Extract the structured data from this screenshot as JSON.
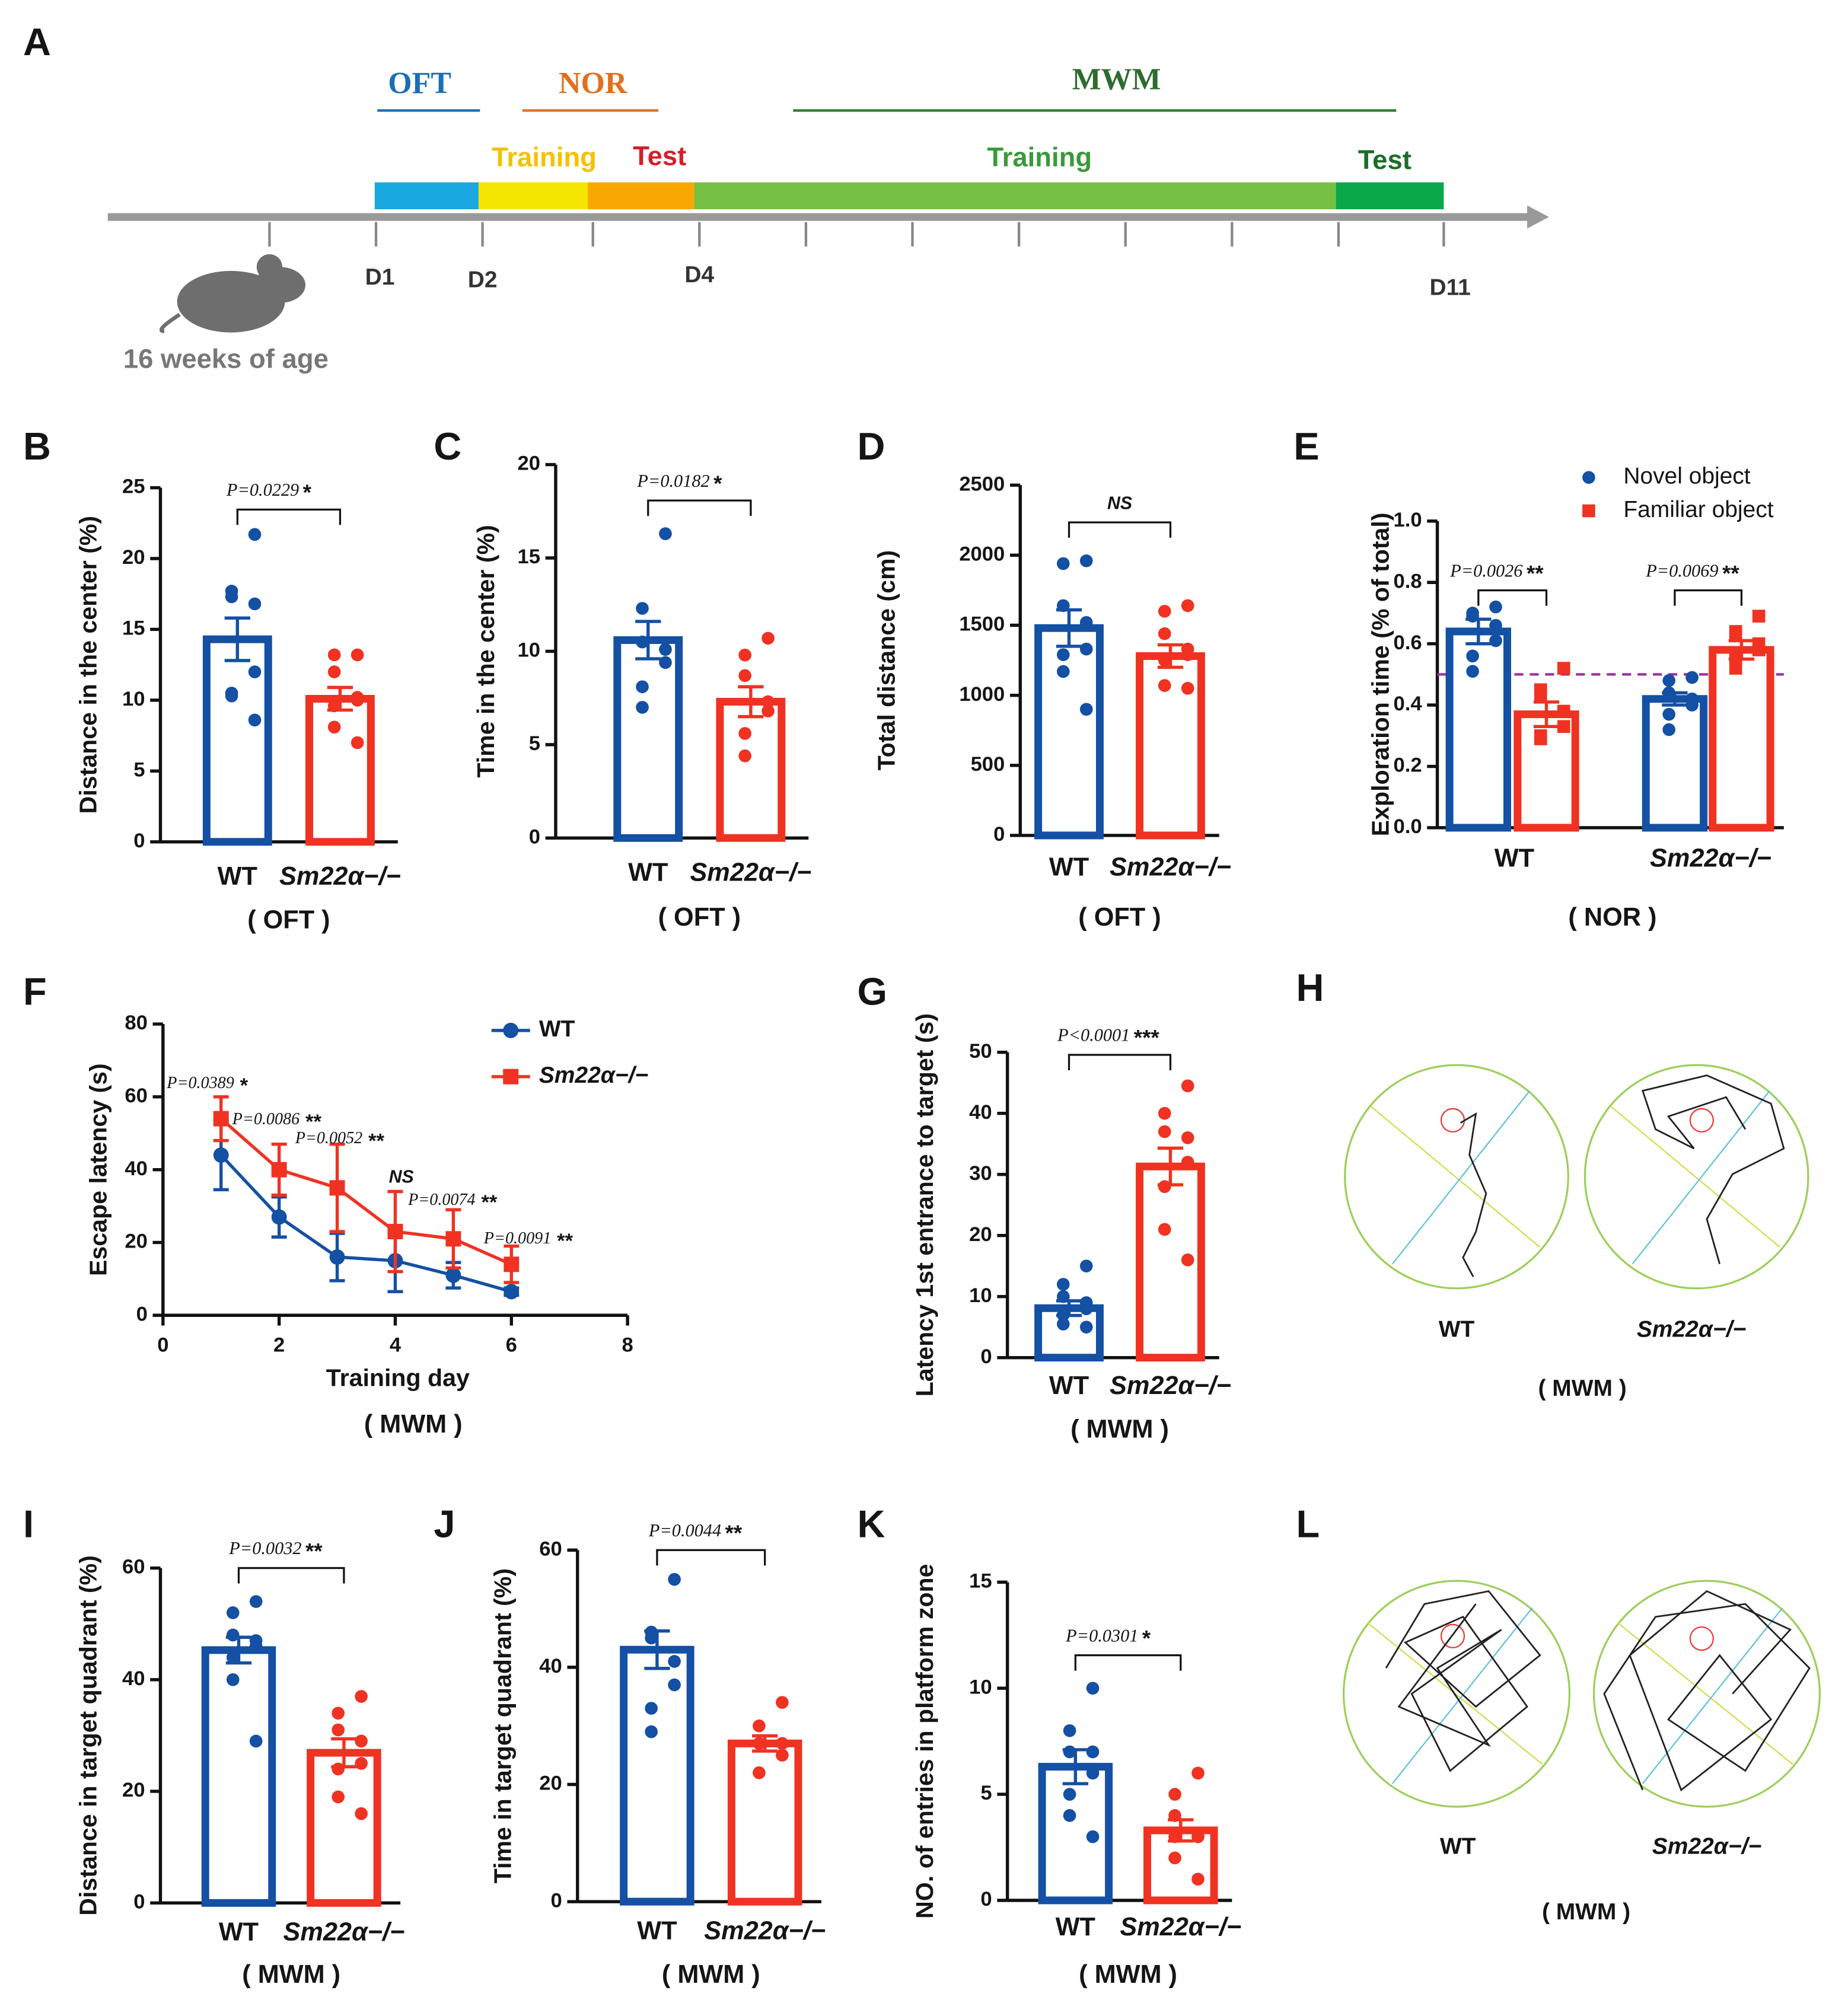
{
  "timeline": {
    "panel": "A",
    "groups": [
      "OFT",
      "NOR",
      "MWM"
    ],
    "phases": [
      "Training",
      "Test",
      "Training",
      "Test"
    ],
    "days": [
      "D1",
      "D2",
      "D4",
      "D11"
    ],
    "age": "16 weeks of age"
  },
  "chart_data": [
    {
      "type": "bar",
      "panel": "B",
      "ylabel": "Distance in the center (%)",
      "categories": [
        "WT",
        "Sm22α−/−"
      ],
      "colors": [
        "#1450a3",
        "#f03222"
      ],
      "values": [
        14.3,
        10.1
      ],
      "errors": [
        1.5,
        0.8
      ],
      "points": [
        [
          21.7,
          17.7,
          17.3,
          16.8,
          12.0,
          10.5,
          10.3,
          8.6
        ],
        [
          13.2,
          13.2,
          12.0,
          10.2,
          10.0,
          9.6,
          8.1,
          7.0
        ]
      ],
      "ylim": [
        0,
        25
      ],
      "yticks": [
        0,
        5,
        10,
        15,
        20,
        25
      ],
      "annotation": {
        "p": "P=0.0229",
        "stars": "*"
      },
      "note": "( OFT )"
    },
    {
      "type": "bar",
      "panel": "C",
      "ylabel": "Time in the center (%)",
      "categories": [
        "WT",
        "Sm22α−/−"
      ],
      "colors": [
        "#1450a3",
        "#f03222"
      ],
      "values": [
        10.6,
        7.3
      ],
      "errors": [
        1.0,
        0.8
      ],
      "points": [
        [
          16.3,
          12.3,
          10.5,
          10.1,
          9.4,
          8.1,
          7.0
        ],
        [
          10.7,
          9.8,
          8.7,
          7.3,
          6.8,
          5.6,
          4.4
        ]
      ],
      "ylim": [
        0,
        20
      ],
      "yticks": [
        0,
        5,
        10,
        15,
        20
      ],
      "annotation": {
        "p": "P=0.0182",
        "stars": "*"
      },
      "note": "( OFT )"
    },
    {
      "type": "bar",
      "panel": "D",
      "ylabel": "Total distance (cm)",
      "categories": [
        "WT",
        "Sm22α−/−"
      ],
      "colors": [
        "#1450a3",
        "#f03222"
      ],
      "values": [
        1480,
        1280
      ],
      "errors": [
        130,
        80
      ],
      "points": [
        [
          1960,
          1940,
          1640,
          1520,
          1330,
          1290,
          1170,
          900
        ],
        [
          1640,
          1600,
          1440,
          1330,
          1290,
          1250,
          1070,
          1050
        ]
      ],
      "ylim": [
        0,
        2500
      ],
      "yticks": [
        0,
        500,
        1000,
        1500,
        2000,
        2500
      ],
      "annotation": {
        "p": "NS"
      },
      "note": "( OFT )"
    },
    {
      "type": "grouped_bar",
      "panel": "E",
      "ylabel": "Exploration time (% of total)",
      "categories": [
        "WT",
        "Sm22α−/−"
      ],
      "series": [
        {
          "name": "Novel object",
          "color": "#1450a3",
          "values": [
            0.64,
            0.42
          ],
          "errors": [
            0.04,
            0.02
          ],
          "points": [
            [
              0.72,
              0.7,
              0.69,
              0.66,
              0.61,
              0.56,
              0.51
            ],
            [
              0.49,
              0.48,
              0.44,
              0.42,
              0.4,
              0.37,
              0.32
            ]
          ]
        },
        {
          "name": "Familiar object",
          "color": "#f03222",
          "values": [
            0.37,
            0.58
          ],
          "errors": [
            0.04,
            0.03
          ],
          "points": [
            [
              0.52,
              0.45,
              0.43,
              0.38,
              0.33,
              0.3,
              0.29
            ],
            [
              0.69,
              0.64,
              0.63,
              0.6,
              0.58,
              0.56,
              0.52
            ]
          ]
        }
      ],
      "ylim": [
        0,
        1
      ],
      "yticks": [
        {
          "value": 0,
          "label": "0.0"
        },
        {
          "value": 0.2,
          "label": "0.2"
        },
        {
          "value": 0.4,
          "label": "0.4"
        },
        {
          "value": 0.6,
          "label": "0.6"
        },
        {
          "value": 0.8,
          "label": "0.8"
        },
        {
          "value": 1,
          "label": "1.0"
        }
      ],
      "reference_line": {
        "value": 0.5,
        "color": "#9b30a8"
      },
      "annotations": [
        {
          "p": "P=0.0026",
          "stars": "**"
        },
        {
          "p": "P=0.0069",
          "stars": "**"
        }
      ],
      "note": "( NOR )",
      "legend": "top-right"
    },
    {
      "type": "line",
      "panel": "F",
      "xlabel": "Training day",
      "ylabel": "Escape latency (s)",
      "x": [
        1,
        2,
        3,
        4,
        5,
        6
      ],
      "series": [
        {
          "name": "WT",
          "color": "#1450a3",
          "marker": "circle",
          "values": [
            44,
            27,
            16,
            15,
            11,
            6.5
          ],
          "errors": [
            9.5,
            5.5,
            6.5,
            8.5,
            3.5,
            1
          ]
        },
        {
          "name": "Sm22α−/−",
          "color": "#f03222",
          "marker": "square",
          "values": [
            54,
            40,
            35,
            23,
            21,
            14
          ],
          "errors": [
            6,
            7,
            12,
            11,
            8,
            5
          ]
        }
      ],
      "xlim": [
        0,
        8
      ],
      "xticks": [
        0,
        2,
        4,
        6,
        8
      ],
      "ylim": [
        0,
        80
      ],
      "yticks": [
        0,
        20,
        40,
        60,
        80
      ],
      "annotations": [
        {
          "p": "P=0.0389",
          "stars": "*"
        },
        {
          "p": "P=0.0086",
          "stars": "**"
        },
        {
          "p": "P=0.0052",
          "stars": "**"
        },
        {
          "p": "NS"
        },
        {
          "p": "P=0.0074",
          "stars": "**"
        },
        {
          "p": "P=0.0091",
          "stars": "**"
        }
      ],
      "note": "( MWM )",
      "legend": "top-right"
    },
    {
      "type": "bar",
      "panel": "G",
      "ylabel": "Latency 1st entrance to target (s)",
      "categories": [
        "WT",
        "Sm22α−/−"
      ],
      "colors": [
        "#1450a3",
        "#f03222"
      ],
      "values": [
        8.1,
        31.3
      ],
      "errors": [
        1.2,
        3.0
      ],
      "points": [
        [
          15,
          12,
          10,
          9,
          8,
          7,
          5.5,
          5
        ],
        [
          44.5,
          40,
          37,
          36,
          32,
          28,
          21,
          16
        ]
      ],
      "ylim": [
        0,
        50
      ],
      "yticks": [
        0,
        10,
        20,
        30,
        40,
        50
      ],
      "annotation": {
        "p": "P<0.0001",
        "stars": "***"
      },
      "note": "( MWM )"
    },
    {
      "type": "bar",
      "panel": "I",
      "ylabel": "Distance in target quadrant  (%)",
      "categories": [
        "WT",
        "Sm22α−/−"
      ],
      "colors": [
        "#1450a3",
        "#f03222"
      ],
      "values": [
        45.3,
        26.9
      ],
      "errors": [
        2.3,
        2.5
      ],
      "points": [
        [
          54,
          52,
          48,
          47,
          46,
          44,
          40,
          29
        ],
        [
          37,
          34,
          31,
          29,
          25,
          24,
          19,
          16
        ]
      ],
      "ylim": [
        0,
        60
      ],
      "yticks": [
        0,
        20,
        40,
        60
      ],
      "annotation": {
        "p": "P=0.0032",
        "stars": "**"
      },
      "note": "( MWM )"
    },
    {
      "type": "bar",
      "panel": "J",
      "ylabel": "Time in target quadrant  (%)",
      "categories": [
        "WT",
        "Sm22α−/−"
      ],
      "colors": [
        "#1450a3",
        "#f03222"
      ],
      "values": [
        43,
        27
      ],
      "errors": [
        3.2,
        1.3
      ],
      "points": [
        [
          55,
          46,
          45,
          41,
          37,
          33,
          29
        ],
        [
          34,
          30,
          27,
          27,
          25,
          22
        ]
      ],
      "ylim": [
        0,
        60
      ],
      "yticks": [
        0,
        20,
        40,
        60
      ],
      "annotation": {
        "p": "P=0.0044",
        "stars": "**"
      },
      "note": "( MWM )"
    },
    {
      "type": "bar",
      "panel": "K",
      "ylabel": "NO. of entries  in platform zone",
      "categories": [
        "WT",
        "Sm22α−/−"
      ],
      "colors": [
        "#1450a3",
        "#f03222"
      ],
      "values": [
        6.3,
        3.3
      ],
      "errors": [
        0.8,
        0.5
      ],
      "points": [
        [
          10,
          8,
          7,
          7,
          6,
          5,
          4,
          3
        ],
        [
          6,
          5,
          4,
          3,
          3,
          3,
          2,
          1
        ]
      ],
      "ylim": [
        0,
        15
      ],
      "yticks": [
        0,
        5,
        10,
        15
      ],
      "annotation": {
        "p": "P=0.0301",
        "stars": "*"
      },
      "note": "( MWM )"
    }
  ],
  "trajectories": [
    {
      "panel": "H",
      "labels": [
        "WT",
        "Sm22α−/−"
      ],
      "note": "( MWM )"
    },
    {
      "panel": "L",
      "labels": [
        "WT",
        "Sm22α−/−"
      ],
      "note": "( MWM )"
    }
  ]
}
